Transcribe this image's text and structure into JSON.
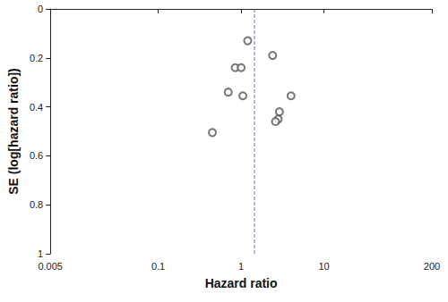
{
  "chart_data": {
    "type": "scatter",
    "x_label": "Hazard ratio",
    "y_label": "SE (log[hazard ratio])",
    "log": "x",
    "grid": false,
    "xlim": [
      0.005,
      200
    ],
    "xticks": [
      0.005,
      0.1,
      1,
      10,
      200
    ],
    "ylim": [
      0,
      1
    ],
    "yticks": [
      0,
      0.2,
      0.4,
      0.6,
      0.8,
      1
    ],
    "series": [
      {
        "type": "scatter",
        "marker": "circle",
        "color": "#555555",
        "x": [
          1.2,
          2.4,
          0.85,
          1.0,
          0.7,
          1.05,
          4.0,
          2.9,
          2.8,
          2.6,
          0.45
        ],
        "values": [
          0.13,
          0.19,
          0.24,
          0.24,
          0.34,
          0.355,
          0.355,
          0.42,
          0.45,
          0.46,
          0.505
        ]
      },
      {
        "type": "line",
        "line_style": "dashed",
        "color": "#6670b8",
        "x": [
          1.45,
          1.45
        ],
        "values": [
          0,
          1
        ]
      }
    ]
  }
}
